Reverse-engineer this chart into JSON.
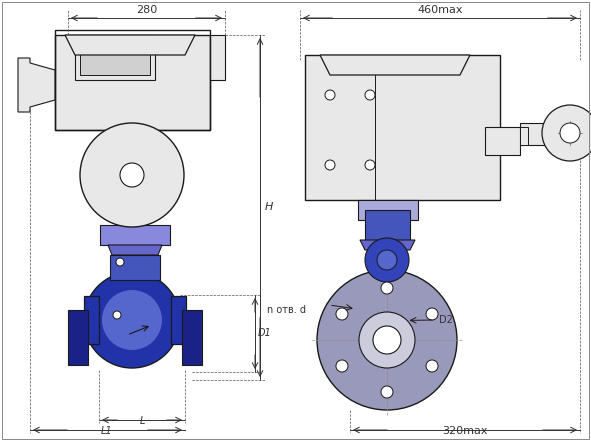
{
  "bg_color": "#ffffff",
  "line_color": "#1a1a1a",
  "blue_dark": "#1a1aaa",
  "blue_mid": "#4444cc",
  "blue_light": "#8888dd",
  "blue_valve": "#3333bb",
  "gray_body": "#cccccc",
  "gray_light": "#e8e8e8",
  "dim_color": "#333333",
  "dim_280": "280",
  "dim_460max": "460max",
  "dim_H": "H",
  "dim_D1": "D1",
  "dim_L": "L",
  "dim_L1": "L1",
  "dim_320max": "320max",
  "dim_D2": "D2",
  "dim_n_otv_d": "n отв. d"
}
